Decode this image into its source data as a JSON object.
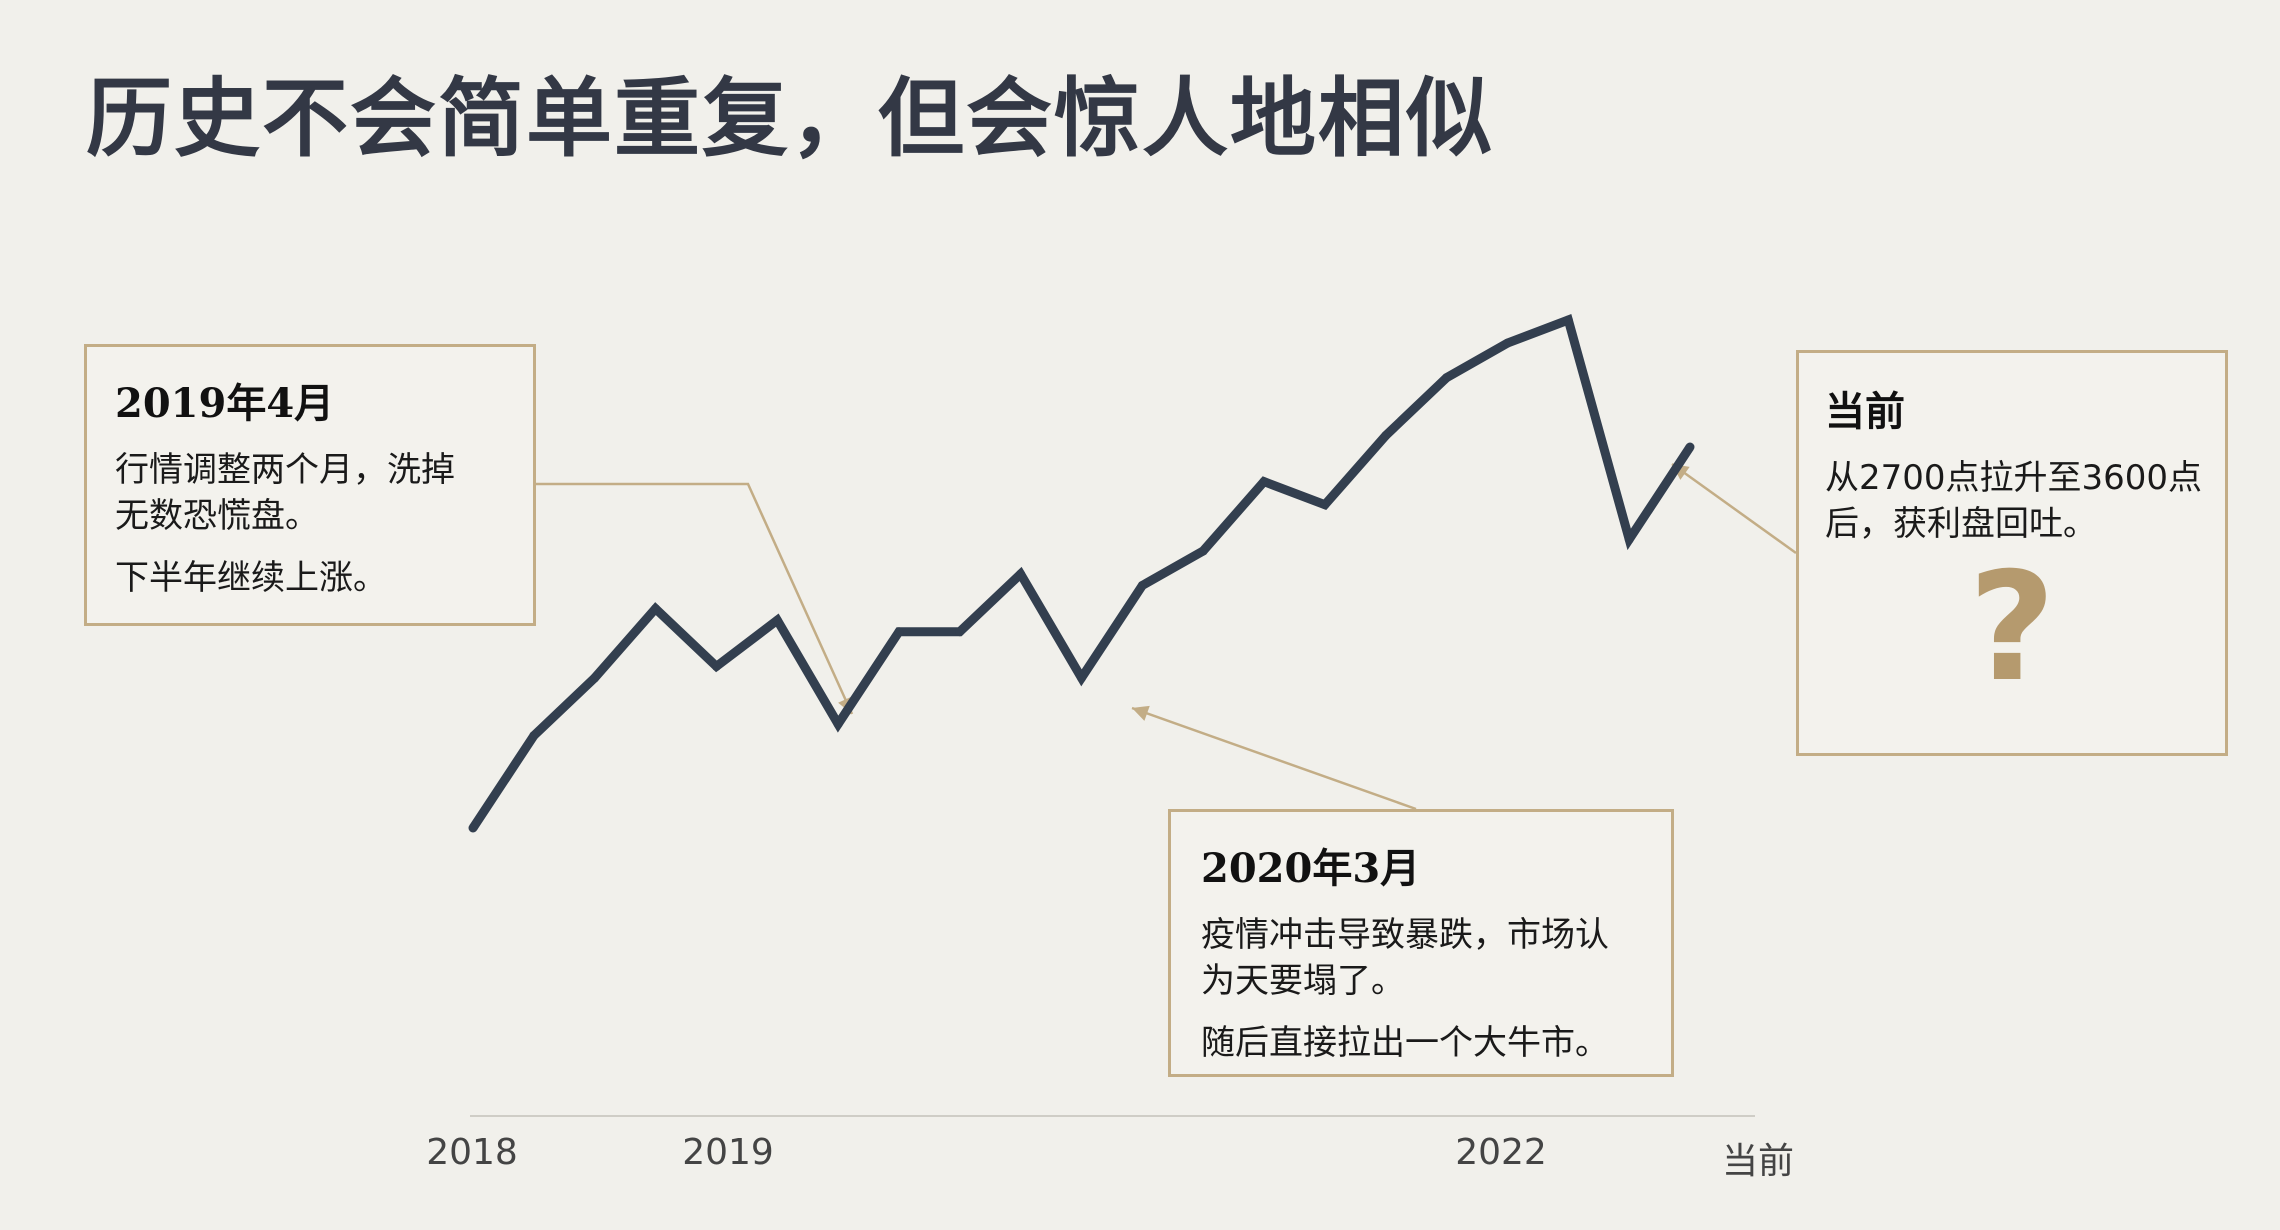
{
  "title": "历史不会简单重复，但会惊人地相似",
  "colors": {
    "line": "#333f4f",
    "accent": "#c3ad86",
    "question": "#b59a6e",
    "background": "#f1f0eb"
  },
  "chart_data": {
    "type": "line",
    "series": [
      {
        "values": [
          18,
          26,
          31,
          37,
          32,
          36,
          27,
          35,
          35,
          40,
          31,
          39,
          42,
          48,
          46,
          52,
          57,
          60,
          62,
          43,
          51
        ]
      }
    ],
    "x_ticks": [
      "2018",
      "2019",
      "",
      "",
      "2022",
      "当前"
    ],
    "grid": false,
    "legend": "none"
  },
  "callouts": {
    "april_2019": {
      "title": "2019年4月",
      "line1": "行情调整两个月，洗掉",
      "line2": "无数恐慌盘。",
      "note": "下半年继续上涨。"
    },
    "march_2020": {
      "title": "2020年3月",
      "line1": "疫情冲击导致暴跌，市场认",
      "line2": "为天要塌了。",
      "note": "随后直接拉出一个大牛市。"
    },
    "current": {
      "title": "当前",
      "line1": "从2700点拉升至3600点",
      "line2": "后，获利盘回吐。",
      "mark": "?"
    }
  }
}
